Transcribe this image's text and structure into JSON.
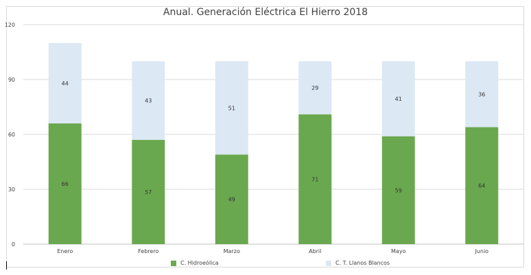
{
  "chart_data": {
    "type": "bar",
    "stacked": true,
    "title": "Anual. Generación Eléctrica El Hierro 2018",
    "categories": [
      "Enero",
      "Febrero",
      "Marzo",
      "Abril",
      "Mayo",
      "Junio"
    ],
    "series": [
      {
        "name": "C. Hidroeólica",
        "values": [
          66,
          57,
          49,
          71,
          59,
          64
        ],
        "color": "#6aa84f"
      },
      {
        "name": "C. T. Llanos Blancos",
        "values": [
          44,
          43,
          51,
          29,
          41,
          36
        ],
        "color": "#dce8f4"
      }
    ],
    "ylim": [
      0,
      120
    ],
    "yticks": [
      "0",
      "30",
      "60",
      "90",
      "120"
    ],
    "grid": true,
    "legend_position": "bottom"
  }
}
